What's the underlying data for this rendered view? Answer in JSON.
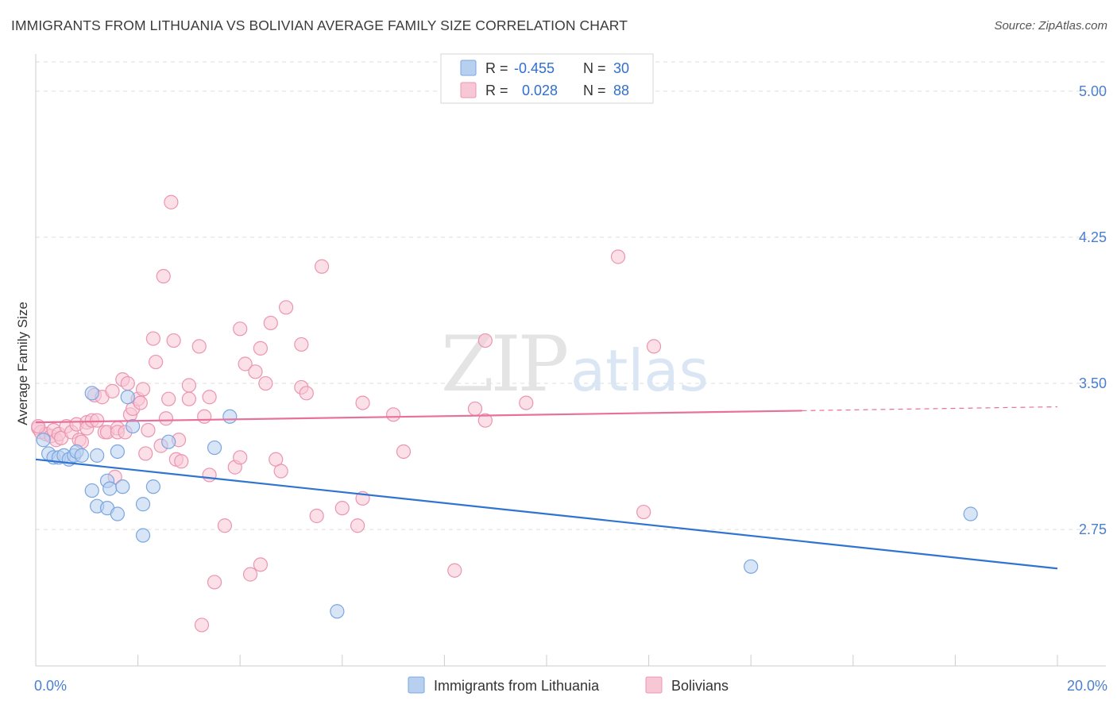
{
  "header": {
    "title": "IMMIGRANTS FROM LITHUANIA VS BOLIVIAN AVERAGE FAMILY SIZE CORRELATION CHART",
    "source": "Source: ZipAtlas.com"
  },
  "watermark": {
    "zip": "ZIP",
    "atlas": "atlas"
  },
  "colors": {
    "blue_fill": "#b8d0f0",
    "blue_stroke": "#7aa6e0",
    "blue_line": "#2f74d0",
    "pink_fill": "#f8c7d6",
    "pink_stroke": "#ec94b1",
    "pink_line": "#e8709a",
    "tick_text": "#4a7fcf",
    "grid": "#dddddd"
  },
  "legend": {
    "rows": [
      {
        "r_label": "R =",
        "r_value": "-0.455",
        "n_label": "N =",
        "n_value": "30"
      },
      {
        "r_label": "R =",
        "r_value": "0.028",
        "n_label": "N =",
        "n_value": "88"
      }
    ]
  },
  "chart_data": {
    "type": "scatter",
    "ylabel": "Average Family Size",
    "xlim": [
      0,
      20
    ],
    "ylim": [
      2.05,
      5.15
    ],
    "x_tick_labels": [
      {
        "value": 0,
        "label": "0.0%"
      },
      {
        "value": 20,
        "label": "20.0%"
      }
    ],
    "y_ticks": [
      {
        "value": 2.75,
        "label": "2.75"
      },
      {
        "value": 3.5,
        "label": "3.50"
      },
      {
        "value": 4.25,
        "label": "4.25"
      },
      {
        "value": 5.0,
        "label": "5.00"
      }
    ],
    "series": [
      {
        "name": "Immigrants from Lithuania",
        "color": "blue",
        "points": [
          [
            0.15,
            3.21
          ],
          [
            0.25,
            3.14
          ],
          [
            0.35,
            3.12
          ],
          [
            0.45,
            3.12
          ],
          [
            0.55,
            3.13
          ],
          [
            0.65,
            3.11
          ],
          [
            0.75,
            3.13
          ],
          [
            0.8,
            3.15
          ],
          [
            0.9,
            3.13
          ],
          [
            1.1,
            2.95
          ],
          [
            1.2,
            2.87
          ],
          [
            1.1,
            3.45
          ],
          [
            1.2,
            3.13
          ],
          [
            1.4,
            2.86
          ],
          [
            1.4,
            3.0
          ],
          [
            1.45,
            2.96
          ],
          [
            1.6,
            3.15
          ],
          [
            1.6,
            2.83
          ],
          [
            1.7,
            2.97
          ],
          [
            1.8,
            3.43
          ],
          [
            1.9,
            3.28
          ],
          [
            2.1,
            2.88
          ],
          [
            2.1,
            2.72
          ],
          [
            2.3,
            2.97
          ],
          [
            2.6,
            3.2
          ],
          [
            3.5,
            3.17
          ],
          [
            3.8,
            3.33
          ],
          [
            5.9,
            2.33
          ],
          [
            14.0,
            2.56
          ],
          [
            18.3,
            2.83
          ]
        ],
        "trend": {
          "x": [
            0,
            20
          ],
          "y": [
            3.11,
            2.55
          ]
        }
      },
      {
        "name": "Bolivians",
        "color": "pink",
        "points": [
          [
            0.05,
            3.27
          ],
          [
            0.1,
            3.25
          ],
          [
            0.2,
            3.24
          ],
          [
            0.3,
            3.23
          ],
          [
            0.35,
            3.26
          ],
          [
            0.4,
            3.21
          ],
          [
            0.45,
            3.24
          ],
          [
            0.5,
            3.22
          ],
          [
            0.6,
            3.28
          ],
          [
            0.7,
            3.25
          ],
          [
            0.8,
            3.29
          ],
          [
            0.85,
            3.21
          ],
          [
            0.9,
            3.2
          ],
          [
            1.0,
            3.3
          ],
          [
            1.0,
            3.27
          ],
          [
            1.1,
            3.31
          ],
          [
            1.15,
            3.44
          ],
          [
            1.2,
            3.31
          ],
          [
            1.3,
            3.43
          ],
          [
            1.35,
            3.25
          ],
          [
            1.4,
            3.25
          ],
          [
            1.5,
            3.46
          ],
          [
            1.55,
            3.02
          ],
          [
            1.6,
            3.27
          ],
          [
            1.6,
            3.25
          ],
          [
            1.7,
            3.52
          ],
          [
            1.75,
            3.25
          ],
          [
            1.8,
            3.5
          ],
          [
            1.85,
            3.34
          ],
          [
            1.9,
            3.37
          ],
          [
            2.0,
            3.42
          ],
          [
            2.05,
            3.4
          ],
          [
            2.1,
            3.47
          ],
          [
            2.15,
            3.14
          ],
          [
            2.2,
            3.26
          ],
          [
            2.3,
            3.73
          ],
          [
            2.35,
            3.61
          ],
          [
            2.45,
            3.18
          ],
          [
            2.5,
            4.05
          ],
          [
            2.55,
            3.32
          ],
          [
            2.6,
            3.42
          ],
          [
            2.65,
            4.43
          ],
          [
            2.7,
            3.72
          ],
          [
            2.75,
            3.11
          ],
          [
            2.8,
            3.21
          ],
          [
            2.85,
            3.1
          ],
          [
            3.0,
            3.42
          ],
          [
            3.0,
            3.49
          ],
          [
            3.2,
            3.69
          ],
          [
            3.3,
            3.33
          ],
          [
            3.4,
            3.43
          ],
          [
            3.4,
            3.03
          ],
          [
            3.5,
            2.48
          ],
          [
            3.25,
            2.26
          ],
          [
            3.7,
            2.77
          ],
          [
            3.9,
            3.07
          ],
          [
            4.0,
            3.12
          ],
          [
            4.0,
            3.78
          ],
          [
            4.1,
            3.6
          ],
          [
            4.2,
            2.52
          ],
          [
            4.3,
            3.56
          ],
          [
            4.4,
            2.57
          ],
          [
            4.4,
            3.68
          ],
          [
            4.5,
            3.5
          ],
          [
            4.6,
            3.81
          ],
          [
            4.7,
            3.11
          ],
          [
            4.8,
            3.05
          ],
          [
            4.9,
            3.89
          ],
          [
            5.2,
            3.48
          ],
          [
            5.2,
            3.7
          ],
          [
            5.3,
            3.45
          ],
          [
            5.5,
            2.82
          ],
          [
            5.6,
            4.1
          ],
          [
            6.0,
            2.86
          ],
          [
            6.3,
            2.77
          ],
          [
            6.4,
            2.91
          ],
          [
            6.4,
            3.4
          ],
          [
            7.0,
            3.34
          ],
          [
            7.2,
            3.15
          ],
          [
            8.2,
            2.54
          ],
          [
            8.6,
            3.37
          ],
          [
            8.8,
            3.72
          ],
          [
            8.8,
            3.31
          ],
          [
            9.6,
            3.4
          ],
          [
            11.4,
            4.15
          ],
          [
            12.1,
            3.69
          ],
          [
            11.9,
            2.84
          ],
          [
            0.05,
            3.28
          ]
        ],
        "trend": {
          "x": [
            0,
            15
          ],
          "y": [
            3.3,
            3.36
          ]
        },
        "trend_dashed": {
          "x": [
            15,
            20
          ],
          "y": [
            3.36,
            3.38
          ]
        }
      }
    ]
  }
}
